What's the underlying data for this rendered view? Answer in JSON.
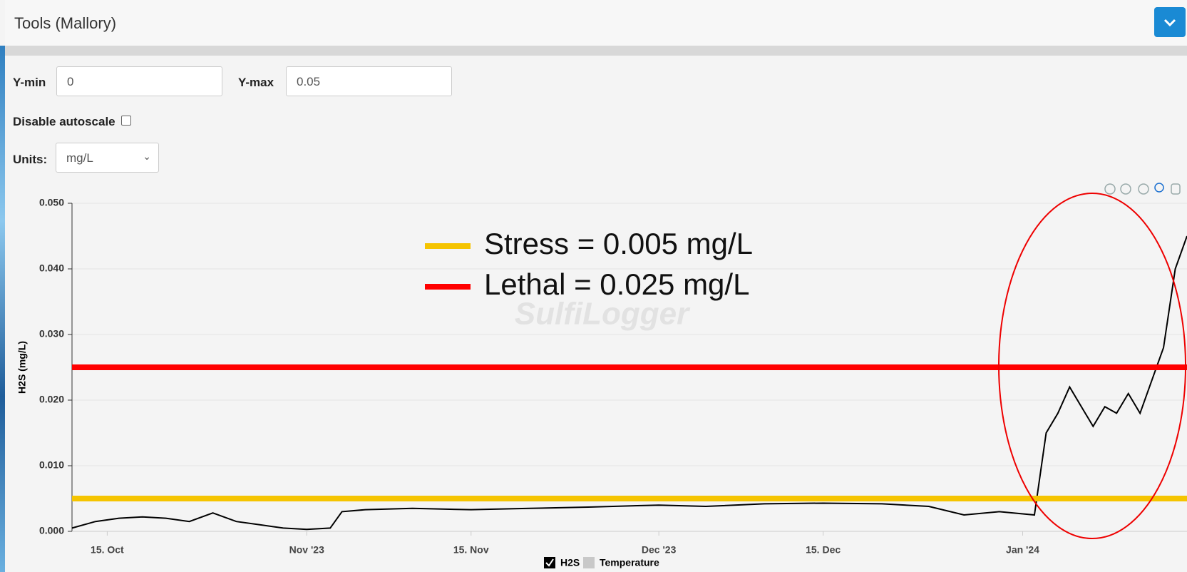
{
  "panel": {
    "title": "Tools (Mallory)",
    "controls": {
      "ymin_label": "Y-min",
      "ymin_value": "0",
      "ymax_label": "Y-max",
      "ymax_value": "0.05",
      "autoscale_label": "Disable autoscale",
      "units_label": "Units:",
      "units_value": "mg/L"
    }
  },
  "chart_data": {
    "type": "line",
    "watermark": "SulfiLogger",
    "y_label": "H2S (mg/L)",
    "x": [
      "2023-10-12",
      "2023-10-14",
      "2023-10-16",
      "2023-10-18",
      "2023-10-20",
      "2023-10-22",
      "2023-10-24",
      "2023-10-26",
      "2023-10-28",
      "2023-10-30",
      "2023-11-01",
      "2023-11-03",
      "2023-11-04",
      "2023-11-06",
      "2023-11-10",
      "2023-11-15",
      "2023-11-20",
      "2023-11-25",
      "2023-12-01",
      "2023-12-05",
      "2023-12-10",
      "2023-12-15",
      "2023-12-20",
      "2023-12-24",
      "2023-12-27",
      "2023-12-30",
      "2024-01-02",
      "2024-01-03",
      "2024-01-04",
      "2024-01-05",
      "2024-01-06",
      "2024-01-07",
      "2024-01-08",
      "2024-01-09",
      "2024-01-10",
      "2024-01-11",
      "2024-01-12",
      "2024-01-13",
      "2024-01-14",
      "2024-01-15"
    ],
    "series": [
      {
        "name": "H2S",
        "color": "#000000",
        "values": [
          0.0005,
          0.0015,
          0.002,
          0.0022,
          0.002,
          0.0015,
          0.0028,
          0.0015,
          0.001,
          0.0005,
          0.0003,
          0.0005,
          0.003,
          0.0033,
          0.0035,
          0.0033,
          0.0035,
          0.0037,
          0.004,
          0.0038,
          0.0042,
          0.0043,
          0.0042,
          0.0038,
          0.0025,
          0.003,
          0.0025,
          0.015,
          0.018,
          0.022,
          0.019,
          0.016,
          0.019,
          0.018,
          0.021,
          0.018,
          0.023,
          0.028,
          0.04,
          0.045
        ]
      }
    ],
    "hidden_series": [
      {
        "name": "Temperature",
        "color": "#c8c8c8"
      }
    ],
    "thresholds": [
      {
        "label": "Stress = 0.005 mg/L",
        "value": 0.005,
        "color": "#f5c400"
      },
      {
        "label": "Lethal = 0.025 mg/L",
        "value": 0.025,
        "color": "#ff0000"
      }
    ],
    "xlim": [
      "2023-10-12",
      "2024-01-15"
    ],
    "xticks": [
      {
        "value": "2023-10-15",
        "label": "15. Oct"
      },
      {
        "value": "2023-11-01",
        "label": "Nov '23"
      },
      {
        "value": "2023-11-15",
        "label": "15. Nov"
      },
      {
        "value": "2023-12-01",
        "label": "Dec '23"
      },
      {
        "value": "2023-12-15",
        "label": "15. Dec"
      },
      {
        "value": "2024-01-01",
        "label": "Jan '24"
      }
    ],
    "ylim": [
      0,
      0.05
    ],
    "yticks": [
      {
        "value": 0,
        "label": "0.000"
      },
      {
        "value": 0.01,
        "label": "0.010"
      },
      {
        "value": 0.02,
        "label": "0.020"
      },
      {
        "value": 0.03,
        "label": "0.030"
      },
      {
        "value": 0.04,
        "label": "0.040"
      },
      {
        "value": 0.05,
        "label": "0.050"
      }
    ],
    "grid": true
  }
}
